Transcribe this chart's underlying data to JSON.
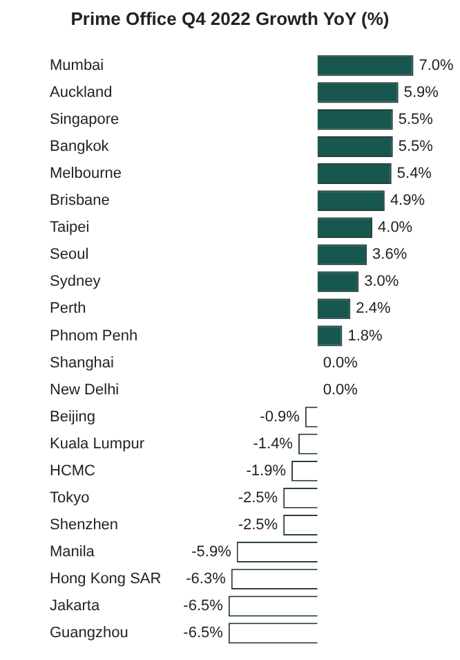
{
  "chart_data": {
    "type": "bar",
    "orientation": "horizontal",
    "title": "Prime Office Q4 2022 Growth YoY (%)",
    "categories": [
      "Mumbai",
      "Auckland",
      "Singapore",
      "Bangkok",
      "Melbourne",
      "Brisbane",
      "Taipei",
      "Seoul",
      "Sydney",
      "Perth",
      "Phnom Penh",
      "Shanghai",
      "New Delhi",
      "Beijing",
      "Kuala Lumpur",
      "HCMC",
      "Tokyo",
      "Shenzhen",
      "Manila",
      "Hong Kong SAR",
      "Jakarta",
      "Guangzhou"
    ],
    "values": [
      7.0,
      5.9,
      5.5,
      5.5,
      5.4,
      4.9,
      4.0,
      3.6,
      3.0,
      2.4,
      1.8,
      0.0,
      0.0,
      -0.9,
      -1.4,
      -1.9,
      -2.5,
      -2.5,
      -5.9,
      -6.3,
      -6.5,
      -6.5
    ],
    "value_labels": [
      "7.0%",
      "5.9%",
      "5.5%",
      "5.5%",
      "5.4%",
      "4.9%",
      "4.0%",
      "3.6%",
      "3.0%",
      "2.4%",
      "1.8%",
      "0.0%",
      "0.0%",
      "-0.9%",
      "-1.4%",
      "-1.9%",
      "-2.5%",
      "-2.5%",
      "-5.9%",
      "-6.3%",
      "-6.5%",
      "-6.5%"
    ],
    "colors": [
      "#17574f",
      "#17574f",
      "#17574f",
      "#17574f",
      "#17574f",
      "#17574f",
      "#17574f",
      "#17574f",
      "#17574f",
      "#17574f",
      "#17574f",
      "#17574f",
      "#17574f",
      "#ffffff",
      "#ffffff",
      "#ffffff",
      "#ffffff",
      "#ffffff",
      "#ffffff",
      "#ffffff",
      "#ffffff",
      "#ffffff"
    ],
    "legend": false,
    "tick_labels": "y"
  }
}
